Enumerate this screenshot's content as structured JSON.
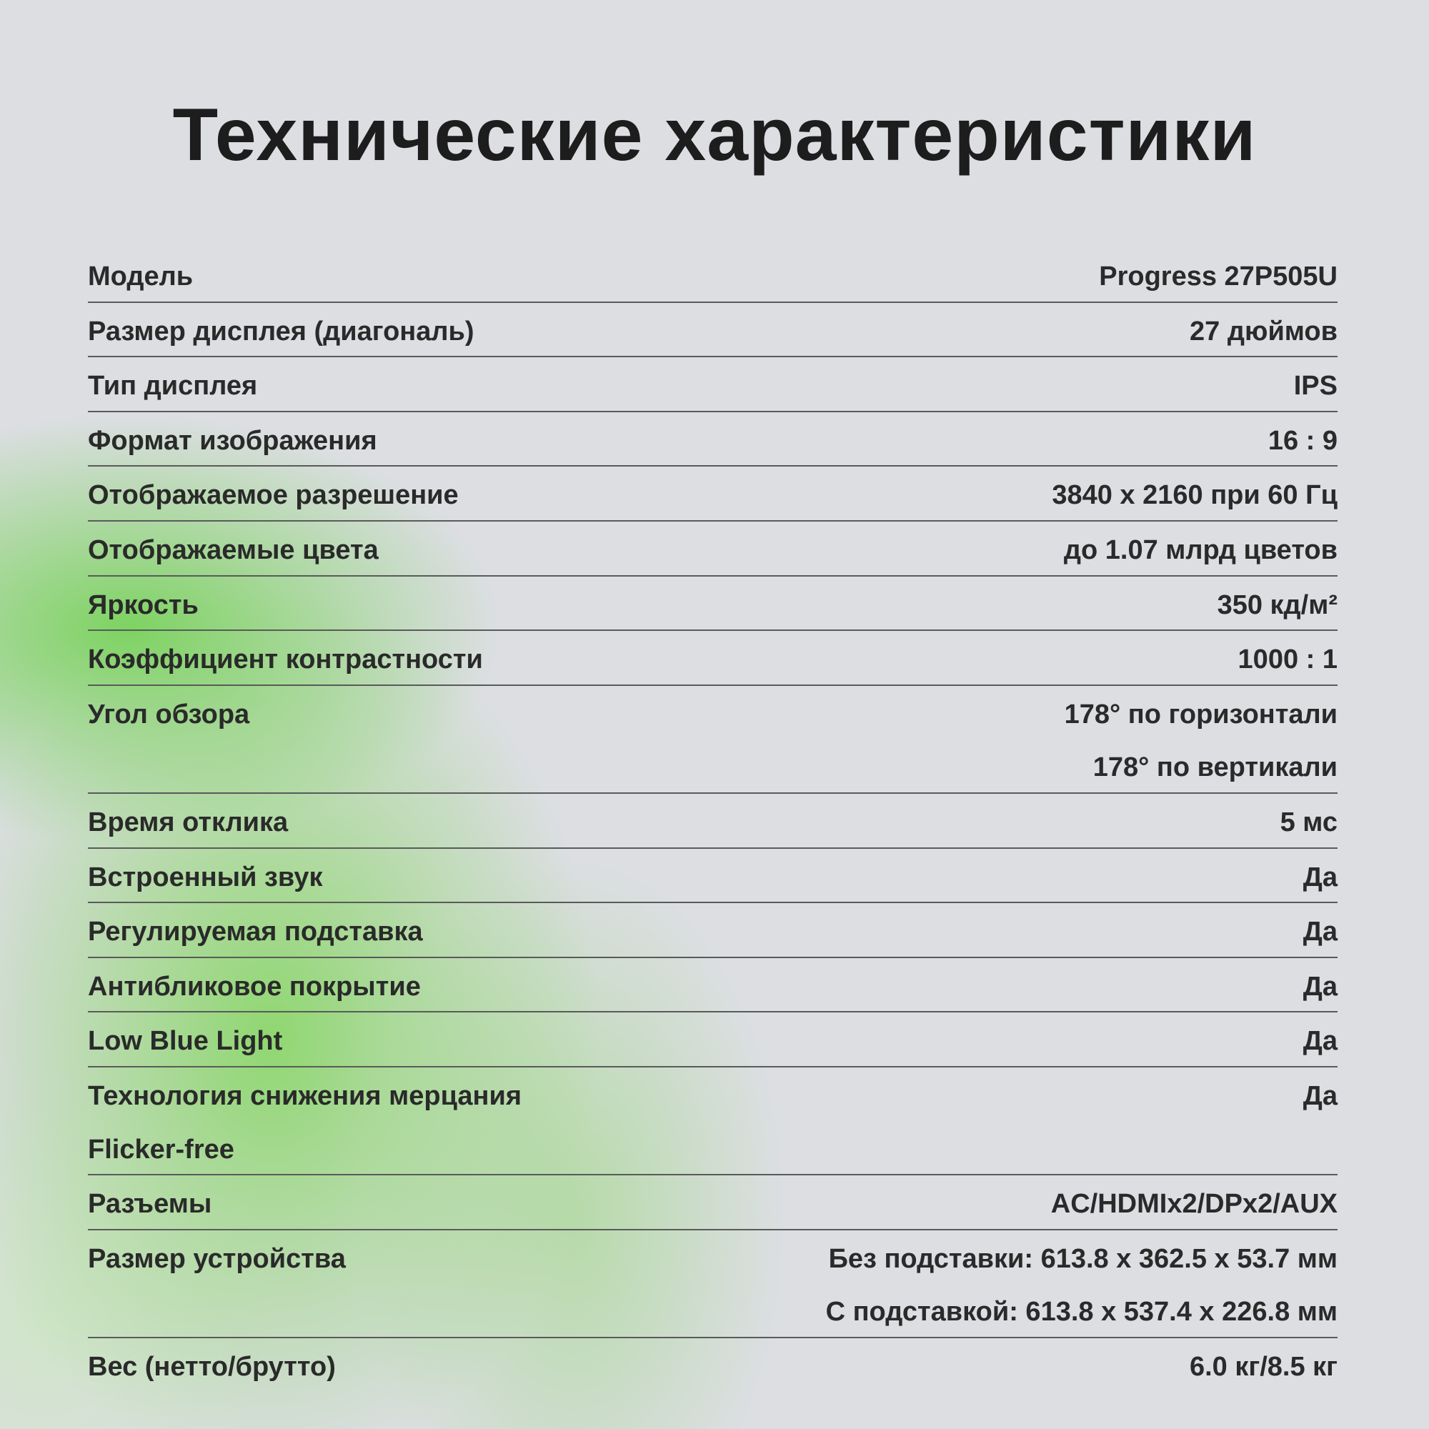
{
  "title": "Технические характеристики",
  "specs": [
    {
      "label": [
        "Модель"
      ],
      "value": [
        "Progress 27P505U"
      ]
    },
    {
      "label": [
        "Размер дисплея (диагональ)"
      ],
      "value": [
        "27 дюймов"
      ]
    },
    {
      "label": [
        "Тип дисплея"
      ],
      "value": [
        "IPS"
      ]
    },
    {
      "label": [
        "Формат изображения"
      ],
      "value": [
        "16 : 9"
      ]
    },
    {
      "label": [
        "Отображаемое разрешение"
      ],
      "value": [
        "3840 x 2160 при 60 Гц"
      ]
    },
    {
      "label": [
        "Отображаемые цвета"
      ],
      "value": [
        "до 1.07 млрд цветов"
      ]
    },
    {
      "label": [
        "Яркость"
      ],
      "value": [
        "350 кд/м²"
      ]
    },
    {
      "label": [
        "Коэффициент контрастности"
      ],
      "value": [
        "1000 : 1"
      ]
    },
    {
      "label": [
        "Угол обзора"
      ],
      "value": [
        "178° по горизонтали",
        "178° по вертикали"
      ]
    },
    {
      "label": [
        "Время отклика"
      ],
      "value": [
        "5 мс"
      ]
    },
    {
      "label": [
        "Встроенный звук"
      ],
      "value": [
        "Да"
      ]
    },
    {
      "label": [
        "Регулируемая подставка"
      ],
      "value": [
        "Да"
      ]
    },
    {
      "label": [
        "Антибликовое покрытие"
      ],
      "value": [
        "Да"
      ]
    },
    {
      "label": [
        "Low Blue Light"
      ],
      "value": [
        "Да"
      ]
    },
    {
      "label": [
        "Технология снижения мерцания",
        "Flicker-free"
      ],
      "value": [
        "Да"
      ]
    },
    {
      "label": [
        "Разъемы"
      ],
      "value": [
        "AC/HDMIx2/DPx2/AUX"
      ]
    },
    {
      "label": [
        "Размер устройства"
      ],
      "value": [
        "Без подставки: 613.8 x 362.5 x 53.7 мм",
        "С подставкой: 613.8 x 537.4 x 226.8 мм"
      ]
    },
    {
      "label": [
        "Вес (нетто/брутто)"
      ],
      "value": [
        "6.0 кг/8.5 кг"
      ]
    }
  ]
}
